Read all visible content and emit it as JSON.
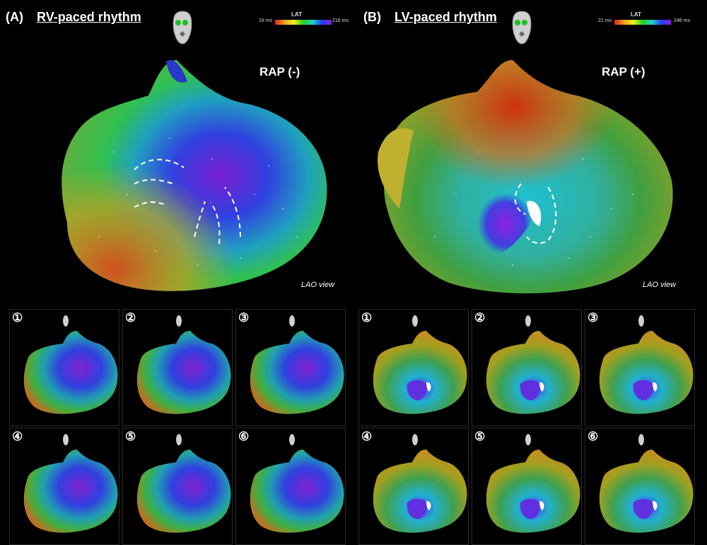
{
  "panelA": {
    "label": "(A)",
    "title": "RV-paced rhythm",
    "legend": {
      "min": "16 ms",
      "max": "216 ms",
      "title": "LAT"
    },
    "rap": "RAP (-)",
    "view": "LAO view",
    "thumb_numbers": [
      "①",
      "②",
      "③",
      "④",
      "⑤",
      "⑥"
    ]
  },
  "panelB": {
    "label": "(B)",
    "title": "LV-paced rhythm",
    "legend": {
      "min": "21 ms",
      "max": "246 ms",
      "title": "LAT"
    },
    "rap": "RAP (+)",
    "view": "LAO view",
    "thumb_numbers": [
      "①",
      "②",
      "③",
      "④",
      "⑤",
      "⑥"
    ]
  },
  "icons": [
    "torso-icon",
    "pacing-lead-icon"
  ]
}
